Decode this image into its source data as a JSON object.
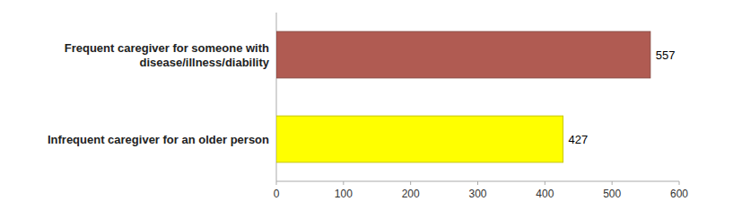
{
  "chart_data": {
    "type": "bar",
    "orientation": "horizontal",
    "categories": [
      "Frequent caregiver for someone with\ndisease/illness/diability",
      "Infrequent caregiver for an older person"
    ],
    "values": [
      557,
      427
    ],
    "colors": [
      "#b05b52",
      "#ffff00"
    ],
    "xlim": [
      0,
      600
    ],
    "xticks": [
      0,
      100,
      200,
      300,
      400,
      500,
      600
    ],
    "data_labels": true,
    "grid": false
  }
}
